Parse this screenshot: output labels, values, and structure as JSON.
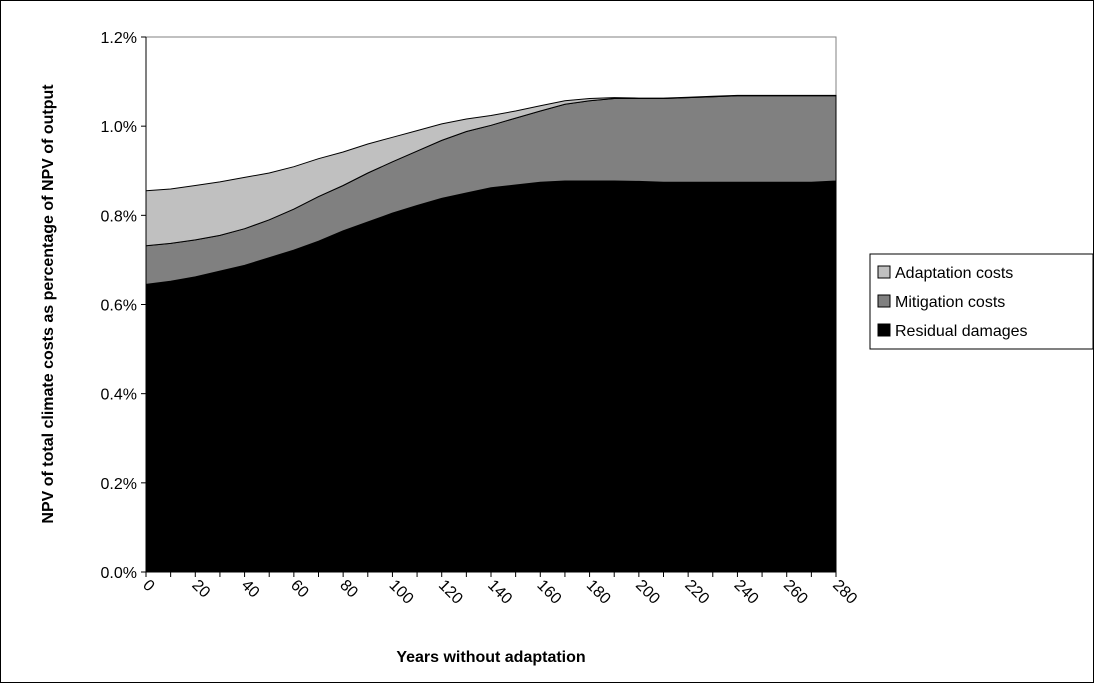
{
  "chart_data": {
    "type": "area",
    "stacked": true,
    "title": "",
    "xlabel": "Years without adaptation",
    "ylabel": "NPV of total climate costs as percentage of NPV of output",
    "ylim": [
      0,
      1.2
    ],
    "y_ticks": [
      "0.0%",
      "0.2%",
      "0.4%",
      "0.6%",
      "0.8%",
      "1.0%",
      "1.2%"
    ],
    "y_tick_values": [
      0,
      0.2,
      0.4,
      0.6,
      0.8,
      1.0,
      1.2
    ],
    "x": [
      0,
      10,
      20,
      30,
      40,
      50,
      60,
      70,
      80,
      90,
      100,
      110,
      120,
      130,
      140,
      150,
      160,
      170,
      180,
      190,
      200,
      210,
      220,
      230,
      240,
      250,
      260,
      270,
      280
    ],
    "x_ticks": [
      "0",
      "20",
      "40",
      "60",
      "80",
      "100",
      "120",
      "140",
      "160",
      "180",
      "200",
      "220",
      "240",
      "260",
      "280"
    ],
    "x_tick_values": [
      0,
      20,
      40,
      60,
      80,
      100,
      120,
      140,
      160,
      180,
      200,
      220,
      240,
      260,
      280
    ],
    "series": [
      {
        "name": "Residual damages",
        "color": "#000000",
        "values": [
          0.645,
          0.652,
          0.662,
          0.675,
          0.688,
          0.705,
          0.722,
          0.742,
          0.765,
          0.785,
          0.805,
          0.822,
          0.838,
          0.85,
          0.862,
          0.868,
          0.874,
          0.877,
          0.877,
          0.877,
          0.876,
          0.874,
          0.874,
          0.874,
          0.874,
          0.874,
          0.874,
          0.874,
          0.877
        ]
      },
      {
        "name": "Mitigation costs",
        "color": "#808080",
        "values": [
          0.087,
          0.085,
          0.083,
          0.08,
          0.082,
          0.085,
          0.092,
          0.1,
          0.102,
          0.11,
          0.115,
          0.122,
          0.13,
          0.138,
          0.14,
          0.15,
          0.16,
          0.172,
          0.18,
          0.185,
          0.186,
          0.188,
          0.19,
          0.192,
          0.194,
          0.194,
          0.194,
          0.194,
          0.191
        ]
      },
      {
        "name": "Adaptation costs",
        "color": "#c0c0c0",
        "values": [
          0.123,
          0.122,
          0.122,
          0.12,
          0.115,
          0.105,
          0.095,
          0.085,
          0.075,
          0.065,
          0.055,
          0.046,
          0.037,
          0.028,
          0.022,
          0.016,
          0.012,
          0.008,
          0.005,
          0.002,
          0.001,
          0.001,
          0.001,
          0.001,
          0.001,
          0.001,
          0.001,
          0.001,
          0.001
        ]
      }
    ],
    "legend": {
      "position": "right",
      "entries": [
        "Adaptation costs",
        "Mitigation costs",
        "Residual damages"
      ]
    },
    "grid": false
  }
}
